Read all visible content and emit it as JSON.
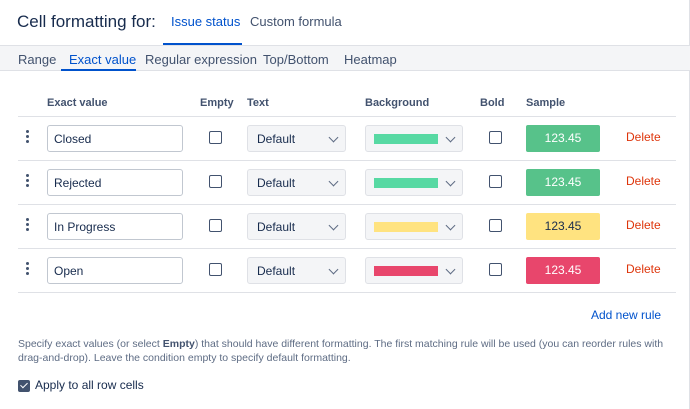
{
  "header": {
    "title": "Cell formatting for:",
    "tabs": [
      {
        "label": "Issue status",
        "active": true
      },
      {
        "label": "Custom formula",
        "active": false
      }
    ]
  },
  "subtabs": [
    {
      "label": "Range",
      "active": false
    },
    {
      "label": "Exact value",
      "active": true
    },
    {
      "label": "Regular expression",
      "active": false
    },
    {
      "label": "Top/Bottom",
      "active": false
    },
    {
      "label": "Heatmap",
      "active": false
    }
  ],
  "columns": {
    "exact_value": "Exact value",
    "empty": "Empty",
    "text": "Text",
    "background": "Background",
    "bold": "Bold",
    "sample": "Sample"
  },
  "rules": [
    {
      "value": "Closed",
      "empty": false,
      "text": "Default",
      "background": "#57d9a3",
      "bold": false,
      "sample": "123.45",
      "sample_bg": "#57c28a",
      "sample_fg": "#ffffff",
      "delete": "Delete"
    },
    {
      "value": "Rejected",
      "empty": false,
      "text": "Default",
      "background": "#57d9a3",
      "bold": false,
      "sample": "123.45",
      "sample_bg": "#57c28a",
      "sample_fg": "#ffffff",
      "delete": "Delete"
    },
    {
      "value": "In Progress",
      "empty": false,
      "text": "Default",
      "background": "#ffe380",
      "bold": false,
      "sample": "123.45",
      "sample_bg": "#ffe380",
      "sample_fg": "#172b4d",
      "delete": "Delete"
    },
    {
      "value": "Open",
      "empty": false,
      "text": "Default",
      "background": "#e8466c",
      "bold": false,
      "sample": "123.45",
      "sample_bg": "#e8466c",
      "sample_fg": "#ffffff",
      "delete": "Delete"
    }
  ],
  "add_rule": "Add new rule",
  "help": {
    "before": "Specify exact values (or select ",
    "bold": "Empty",
    "after": ") that should have different formatting. The first matching rule will be used (you can reorder rules with drag-and-drop). Leave the condition empty to specify default formatting."
  },
  "apply_all": {
    "label": "Apply to all row cells",
    "checked": true
  },
  "colors": {
    "accent": "#0052cc",
    "danger": "#de350b",
    "text": "#172b4d"
  },
  "icons": {
    "drag": "drag-handle-icon",
    "chevron": "chevron-down-icon"
  }
}
